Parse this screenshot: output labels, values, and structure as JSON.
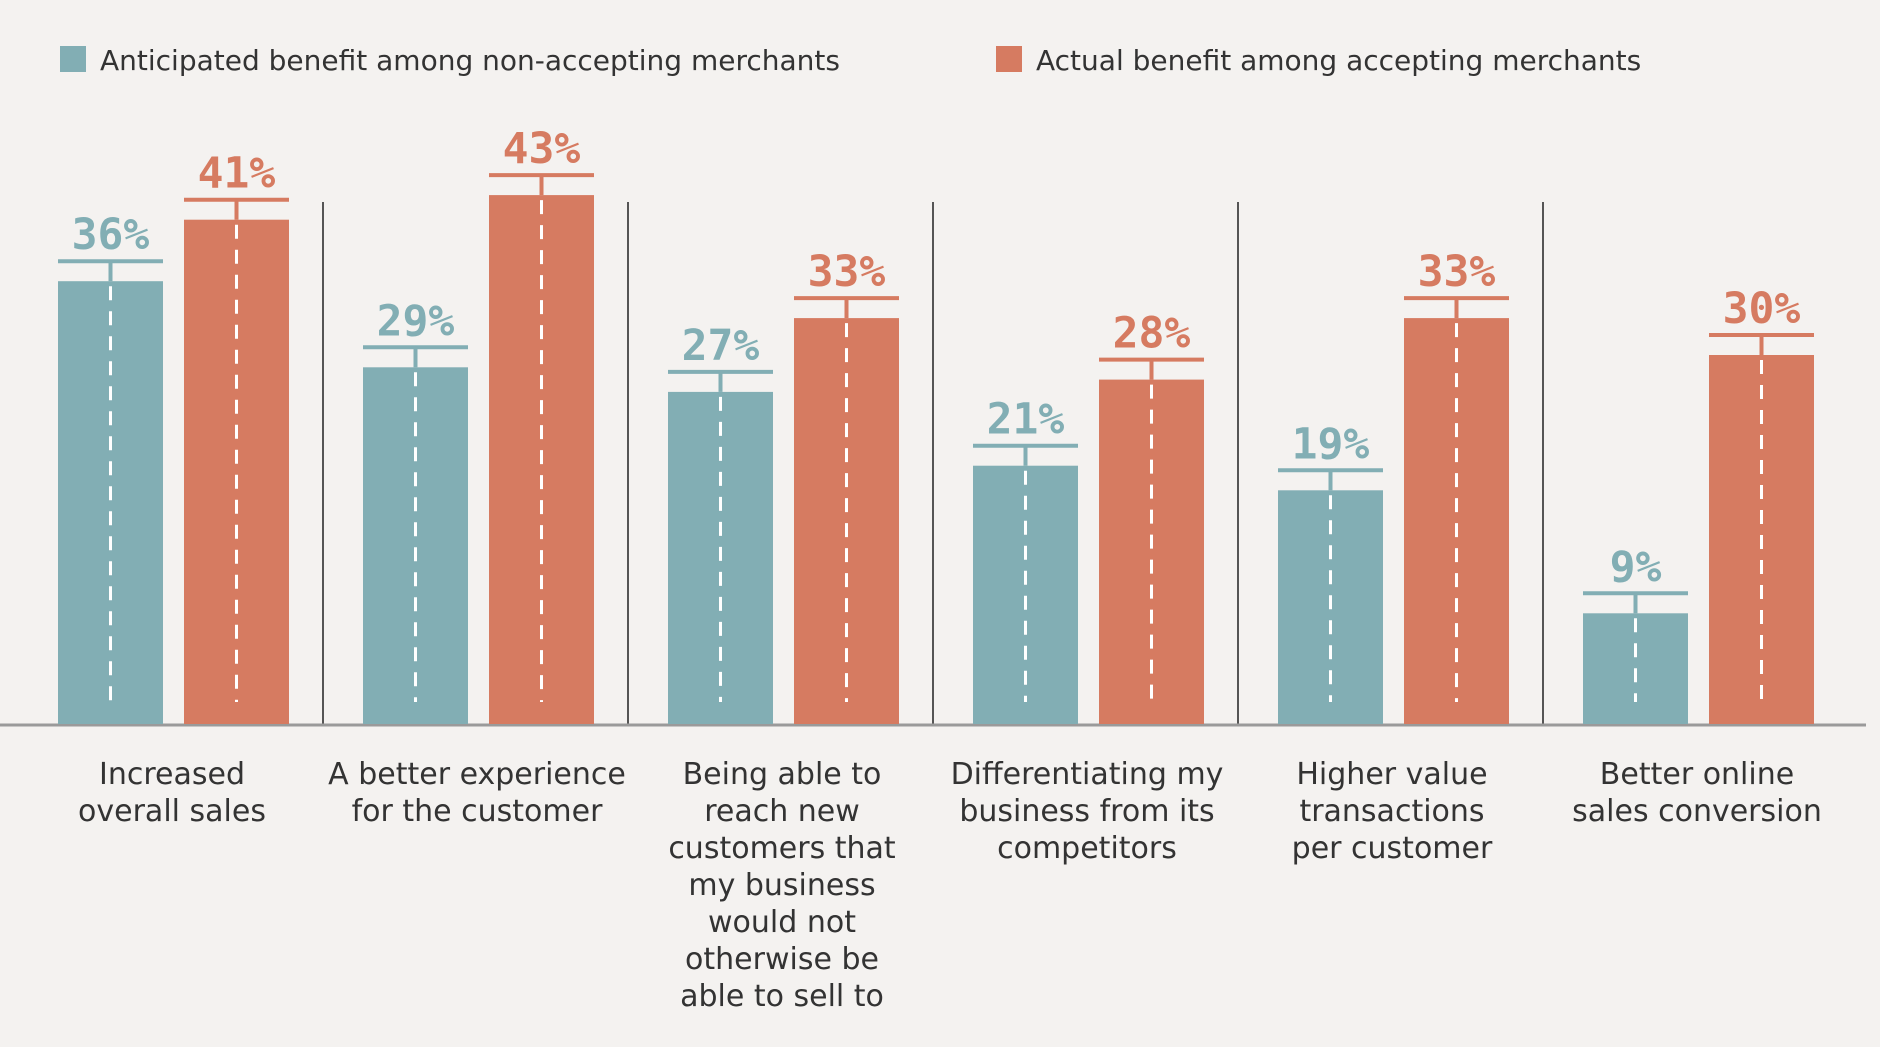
{
  "chart_data": {
    "type": "bar",
    "title": "",
    "xlabel": "",
    "ylabel": "",
    "ylim": [
      0,
      45
    ],
    "categories": [
      [
        "Increased",
        "overall sales"
      ],
      [
        "A better experience",
        "for the customer"
      ],
      [
        "Being able to",
        "reach new",
        "customers that",
        "my business",
        "would not",
        "otherwise be",
        "able to sell to"
      ],
      [
        "Differentiating my",
        "business from its",
        "competitors"
      ],
      [
        "Higher value",
        "transactions",
        "per customer"
      ],
      [
        "Better online",
        "sales conversion"
      ]
    ],
    "series": [
      {
        "name": "Anticipated benefit among non-accepting merchants",
        "color": "#82aeb4",
        "values": [
          36,
          29,
          27,
          21,
          19,
          9
        ],
        "labels": [
          "36%",
          "29%",
          "27%",
          "21%",
          "19%",
          "9%"
        ]
      },
      {
        "name": "Actual benefit among accepting merchants",
        "color": "#d67b61",
        "values": [
          41,
          43,
          33,
          28,
          33,
          30
        ],
        "labels": [
          "41%",
          "43%",
          "33%",
          "28%",
          "33%",
          "30%"
        ]
      }
    ],
    "legend": "top-left",
    "grid": false
  }
}
